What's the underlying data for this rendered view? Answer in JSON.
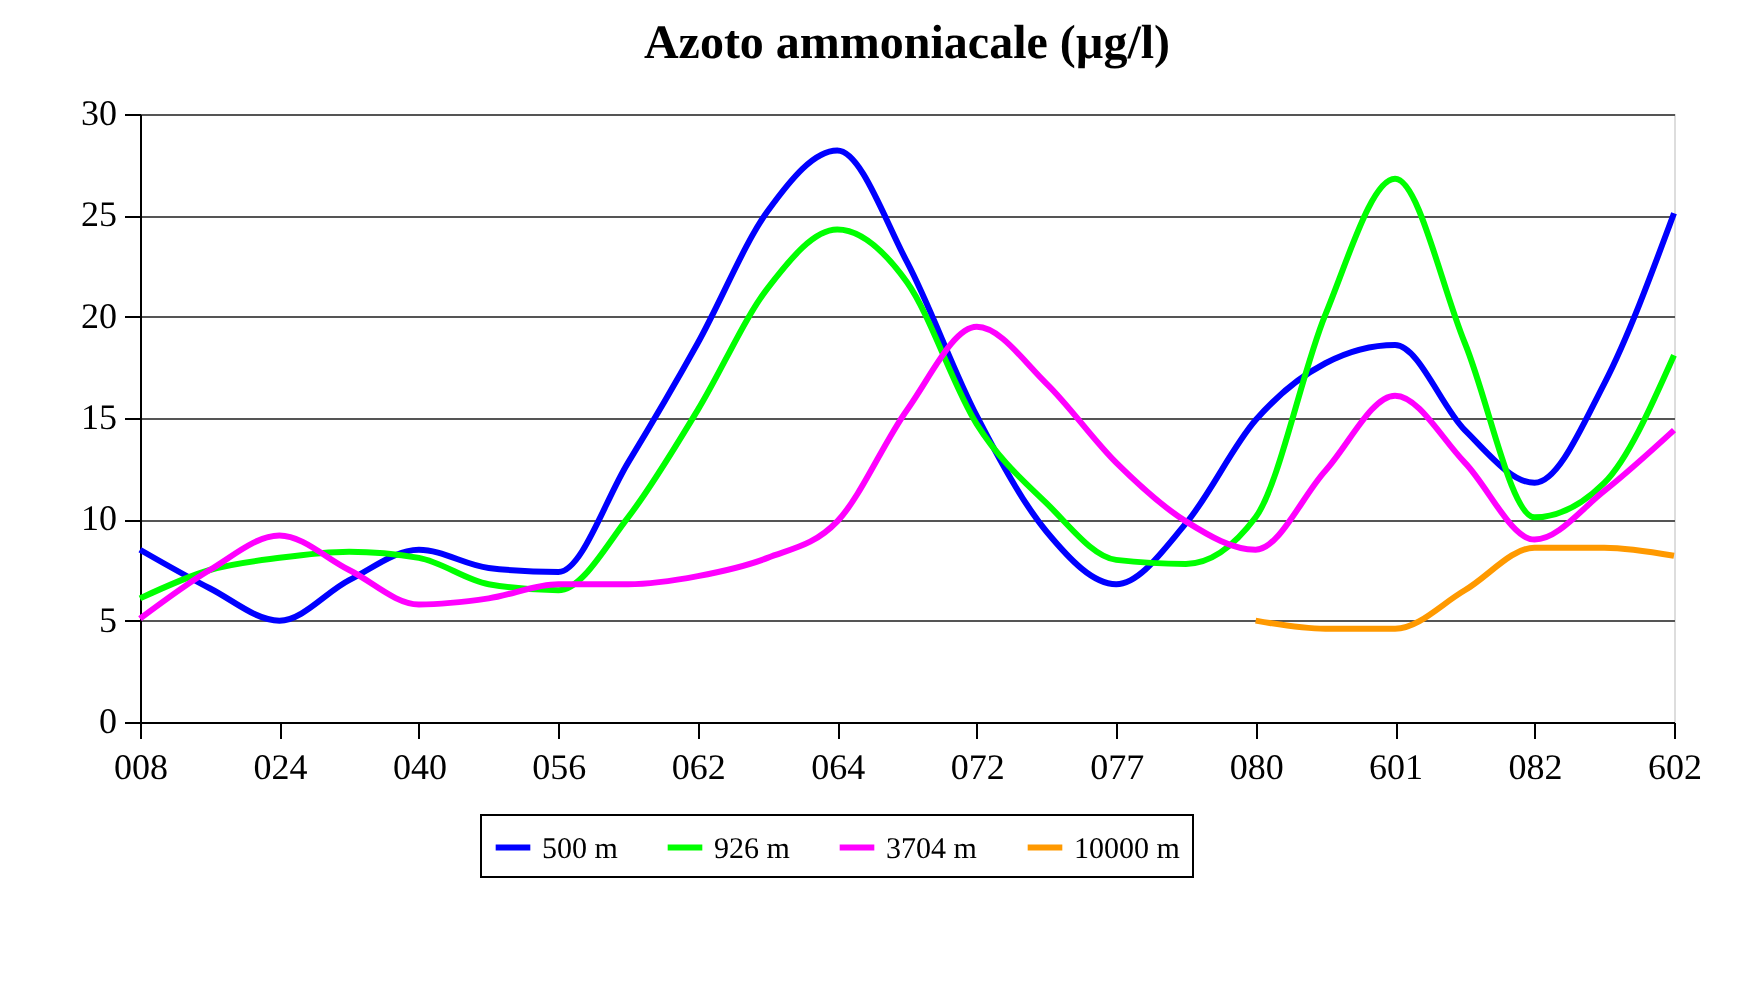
{
  "chart_data": {
    "type": "line",
    "title": "Azoto ammoniacale (µg/l)",
    "categories": [
      "008",
      null,
      "024",
      null,
      "040",
      null,
      "056",
      null,
      "062",
      null,
      "064",
      null,
      "072",
      null,
      "077",
      null,
      "080",
      null,
      "601",
      null,
      "082",
      null,
      "602"
    ],
    "series": [
      {
        "name": "500 m",
        "color": "#0000ff",
        "values": [
          8.5,
          6.6,
          5.0,
          7.0,
          8.5,
          7.6,
          7.4,
          12.8,
          18.7,
          25.2,
          28.2,
          22.7,
          15.1,
          9.4,
          6.8,
          9.8,
          14.9,
          17.7,
          18.6,
          14.4,
          11.8,
          16.7,
          25.1
        ]
      },
      {
        "name": "926 m",
        "color": "#00ff00",
        "values": [
          6.1,
          7.5,
          8.1,
          8.4,
          8.1,
          6.8,
          6.5,
          10.1,
          15.4,
          21.4,
          24.3,
          21.7,
          14.7,
          10.8,
          8.0,
          7.8,
          10.1,
          20.1,
          26.8,
          18.7,
          10.1,
          11.8,
          18.1
        ]
      },
      {
        "name": "3704 m",
        "color": "#ff00ff",
        "values": [
          5.1,
          7.5,
          9.2,
          7.5,
          5.8,
          6.1,
          6.8,
          6.8,
          7.2,
          8.1,
          9.9,
          15.4,
          19.5,
          16.7,
          12.8,
          9.9,
          8.5,
          12.4,
          16.1,
          12.8,
          9.0,
          11.4,
          14.4
        ]
      },
      {
        "name": "10000 m",
        "color": "#ff9900",
        "values": [
          null,
          null,
          null,
          null,
          null,
          null,
          null,
          null,
          null,
          null,
          null,
          null,
          null,
          null,
          null,
          null,
          5.0,
          4.6,
          4.6,
          6.5,
          8.6,
          8.6,
          8.2
        ]
      }
    ],
    "ylim": [
      0,
      30
    ],
    "yticks": [
      0,
      5,
      10,
      15,
      20,
      25,
      30
    ],
    "grid": "y",
    "legend": "bottom",
    "line_style": "solid",
    "marker": "none"
  }
}
